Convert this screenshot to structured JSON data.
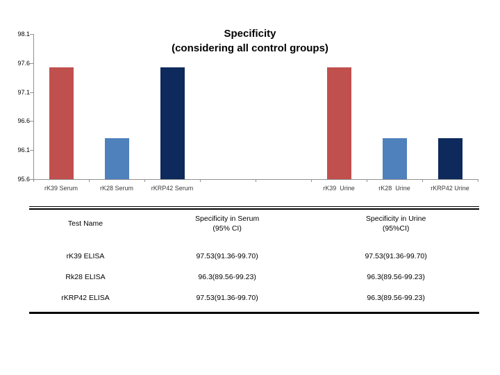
{
  "chart_data": {
    "type": "bar",
    "title": "Specificity (considering all control groups)",
    "title_lines": [
      "Specificity",
      "(considering all control groups)"
    ],
    "categories": [
      "rK39 Serum",
      "rK28 Serum",
      "rKRP42 Serum",
      "rK39  Urine",
      "rK28  Urine",
      "rKRP42 Urine"
    ],
    "values": [
      97.53,
      96.3,
      97.53,
      97.53,
      96.3,
      96.3
    ],
    "slot_indices": [
      0,
      1,
      2,
      5,
      6,
      7
    ],
    "num_slots": 8,
    "bar_colors": [
      "#C0504D",
      "#4F81BD",
      "#0E2A5C",
      "#C0504D",
      "#4F81BD",
      "#0E2A5C"
    ],
    "ylim": [
      95.6,
      98.1
    ],
    "yticks": [
      98.1,
      97.6,
      97.1,
      96.6,
      96.1,
      95.6
    ],
    "xlabel": "",
    "ylabel": "",
    "grid": false,
    "legend": "none",
    "axis_color": "#8f8f8f"
  },
  "table": {
    "columns": [
      {
        "label": "Test Name",
        "sub": ""
      },
      {
        "label": "Specificity in Serum",
        "sub": "(95% CI)"
      },
      {
        "label": "Specificity in Urine",
        "sub": "(95%CI)"
      }
    ],
    "rows": [
      {
        "test": "rK39 ELISA",
        "serum": "97.53(91.36-99.70)",
        "urine": "97.53(91.36-99.70)"
      },
      {
        "test": "Rk28 ELISA",
        "serum": "96.3(89.56-99.23)",
        "urine": "96.3(89.56-99.23)"
      },
      {
        "test": "rKRP42 ELISA",
        "serum": "97.53(91.36-99.70)",
        "urine": "96.3(89.56-99.23)"
      }
    ]
  }
}
